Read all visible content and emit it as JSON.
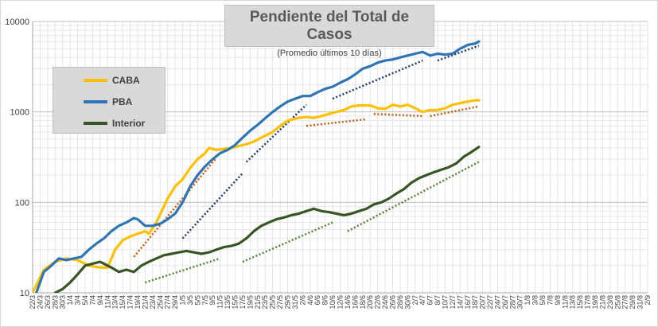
{
  "title": "Pendiente del Total de Casos",
  "subtitle": "(Promedio últimos 10 días)",
  "legend": [
    {
      "key": "caba",
      "label": "CABA",
      "color": "#ffc000"
    },
    {
      "key": "pba",
      "label": "PBA",
      "color": "#2e75b6"
    },
    {
      "key": "interior",
      "label": "Interior",
      "color": "#375623"
    }
  ],
  "chart_data": {
    "type": "line",
    "y_scale": "log",
    "ylim": [
      10,
      10000
    ],
    "y_ticks": [
      "10",
      "100",
      "1000",
      "10000"
    ],
    "grid": true,
    "legend_position": "left",
    "x_dates": [
      "22/3",
      "24/3",
      "26/3",
      "28/3",
      "30/3",
      "1/4",
      "3/4",
      "5/4",
      "7/4",
      "9/4",
      "11/4",
      "13/4",
      "15/4",
      "17/4",
      "19/4",
      "21/4",
      "23/4",
      "25/4",
      "27/4",
      "29/4",
      "1/5",
      "3/5",
      "5/5",
      "7/5",
      "9/5",
      "11/5",
      "13/5",
      "15/5",
      "17/5",
      "19/5",
      "21/5",
      "23/5",
      "25/5",
      "27/5",
      "29/5",
      "31/5",
      "2/6",
      "4/6",
      "6/6",
      "8/6",
      "10/6",
      "12/6",
      "14/6",
      "16/6",
      "18/6",
      "20/6",
      "22/6",
      "24/6",
      "26/6",
      "28/6",
      "30/6",
      "2/7",
      "4/7",
      "6/7",
      "8/7",
      "10/7",
      "12/7",
      "14/7",
      "16/7",
      "18/7",
      "20/7",
      "22/7",
      "24/7",
      "26/7",
      "28/7",
      "30/7",
      "1/8",
      "3/8",
      "5/8",
      "7/8",
      "9/8",
      "11/8",
      "13/8",
      "15/8",
      "17/8",
      "19/8",
      "21/8",
      "23/8",
      "25/8",
      "27/8",
      "29/8",
      "31/8",
      "2/9"
    ],
    "series": [
      {
        "key": "caba",
        "name": "CABA",
        "color": "#ffc000",
        "points": [
          [
            0,
            10
          ],
          [
            3,
            18
          ],
          [
            6,
            22
          ],
          [
            9,
            24
          ],
          [
            12,
            23
          ],
          [
            15,
            20
          ],
          [
            18,
            19
          ],
          [
            20,
            19
          ],
          [
            22,
            30
          ],
          [
            24,
            38
          ],
          [
            26,
            42
          ],
          [
            28,
            45
          ],
          [
            30,
            48
          ],
          [
            31,
            45
          ],
          [
            33,
            60
          ],
          [
            36,
            110
          ],
          [
            38,
            150
          ],
          [
            40,
            180
          ],
          [
            42,
            240
          ],
          [
            44,
            300
          ],
          [
            46,
            350
          ],
          [
            47,
            400
          ],
          [
            49,
            380
          ],
          [
            51,
            390
          ],
          [
            53,
            400
          ],
          [
            55,
            420
          ],
          [
            57,
            440
          ],
          [
            59,
            470
          ],
          [
            61,
            520
          ],
          [
            64,
            600
          ],
          [
            66,
            700
          ],
          [
            68,
            800
          ],
          [
            71,
            860
          ],
          [
            73,
            880
          ],
          [
            75,
            860
          ],
          [
            77,
            900
          ],
          [
            79,
            950
          ],
          [
            81,
            1000
          ],
          [
            83,
            1050
          ],
          [
            85,
            1150
          ],
          [
            87,
            1180
          ],
          [
            90,
            1180
          ],
          [
            92,
            1100
          ],
          [
            94,
            1080
          ],
          [
            96,
            1200
          ],
          [
            98,
            1150
          ],
          [
            100,
            1200
          ],
          [
            102,
            1100
          ],
          [
            104,
            1000
          ],
          [
            106,
            1050
          ],
          [
            108,
            1050
          ],
          [
            110,
            1100
          ],
          [
            112,
            1200
          ],
          [
            114,
            1250
          ],
          [
            116,
            1300
          ],
          [
            118,
            1350
          ],
          [
            119,
            1340
          ]
        ]
      },
      {
        "key": "pba",
        "name": "PBA",
        "color": "#2e75b6",
        "points": [
          [
            1,
            10
          ],
          [
            3,
            17
          ],
          [
            5,
            20
          ],
          [
            7,
            24
          ],
          [
            9,
            23
          ],
          [
            11,
            24
          ],
          [
            13,
            25
          ],
          [
            15,
            30
          ],
          [
            17,
            35
          ],
          [
            19,
            40
          ],
          [
            21,
            48
          ],
          [
            23,
            55
          ],
          [
            25,
            60
          ],
          [
            27,
            67
          ],
          [
            28,
            65
          ],
          [
            30,
            55
          ],
          [
            32,
            55
          ],
          [
            34,
            58
          ],
          [
            36,
            65
          ],
          [
            38,
            75
          ],
          [
            40,
            100
          ],
          [
            42,
            150
          ],
          [
            44,
            200
          ],
          [
            46,
            250
          ],
          [
            48,
            300
          ],
          [
            50,
            350
          ],
          [
            52,
            380
          ],
          [
            54,
            430
          ],
          [
            56,
            520
          ],
          [
            58,
            620
          ],
          [
            60,
            720
          ],
          [
            62,
            850
          ],
          [
            64,
            1000
          ],
          [
            66,
            1150
          ],
          [
            68,
            1300
          ],
          [
            70,
            1400
          ],
          [
            72,
            1500
          ],
          [
            74,
            1500
          ],
          [
            76,
            1650
          ],
          [
            78,
            1800
          ],
          [
            80,
            1900
          ],
          [
            82,
            2100
          ],
          [
            84,
            2300
          ],
          [
            86,
            2600
          ],
          [
            88,
            3000
          ],
          [
            90,
            3200
          ],
          [
            92,
            3500
          ],
          [
            94,
            3700
          ],
          [
            96,
            3800
          ],
          [
            98,
            4000
          ],
          [
            100,
            4200
          ],
          [
            102,
            4400
          ],
          [
            104,
            4600
          ],
          [
            106,
            4200
          ],
          [
            108,
            4400
          ],
          [
            110,
            4300
          ],
          [
            112,
            4400
          ],
          [
            114,
            5000
          ],
          [
            116,
            5500
          ],
          [
            118,
            5700
          ],
          [
            119,
            6000
          ]
        ]
      },
      {
        "key": "interior",
        "name": "Interior",
        "color": "#375623",
        "points": [
          [
            6,
            10
          ],
          [
            8,
            11
          ],
          [
            10,
            13
          ],
          [
            12,
            16
          ],
          [
            14,
            20
          ],
          [
            16,
            21
          ],
          [
            18,
            22
          ],
          [
            19,
            21
          ],
          [
            21,
            19
          ],
          [
            23,
            17
          ],
          [
            25,
            18
          ],
          [
            27,
            17
          ],
          [
            29,
            20
          ],
          [
            31,
            22
          ],
          [
            33,
            24
          ],
          [
            35,
            26
          ],
          [
            37,
            27
          ],
          [
            39,
            28
          ],
          [
            41,
            29
          ],
          [
            43,
            28
          ],
          [
            45,
            27
          ],
          [
            47,
            28
          ],
          [
            49,
            30
          ],
          [
            51,
            32
          ],
          [
            53,
            33
          ],
          [
            55,
            35
          ],
          [
            57,
            40
          ],
          [
            59,
            48
          ],
          [
            61,
            55
          ],
          [
            63,
            60
          ],
          [
            65,
            65
          ],
          [
            67,
            68
          ],
          [
            69,
            72
          ],
          [
            71,
            75
          ],
          [
            73,
            80
          ],
          [
            75,
            85
          ],
          [
            77,
            80
          ],
          [
            79,
            78
          ],
          [
            81,
            75
          ],
          [
            83,
            72
          ],
          [
            85,
            75
          ],
          [
            87,
            80
          ],
          [
            89,
            85
          ],
          [
            91,
            95
          ],
          [
            93,
            100
          ],
          [
            95,
            110
          ],
          [
            97,
            125
          ],
          [
            99,
            140
          ],
          [
            101,
            165
          ],
          [
            103,
            185
          ],
          [
            105,
            200
          ],
          [
            107,
            215
          ],
          [
            109,
            230
          ],
          [
            111,
            245
          ],
          [
            113,
            270
          ],
          [
            115,
            320
          ],
          [
            117,
            360
          ],
          [
            119,
            410
          ]
        ]
      }
    ],
    "trendlines": [
      {
        "series": "caba",
        "color": "#c55a11",
        "from": [
          27,
          25
        ],
        "to": [
          49,
          310
        ]
      },
      {
        "series": "caba",
        "color": "#c55a11",
        "from": [
          73,
          700
        ],
        "to": [
          89,
          830
        ]
      },
      {
        "series": "caba",
        "color": "#c55a11",
        "from": [
          91,
          950
        ],
        "to": [
          104,
          900
        ]
      },
      {
        "series": "caba",
        "color": "#c55a11",
        "from": [
          106,
          900
        ],
        "to": [
          119,
          1150
        ]
      },
      {
        "series": "pba",
        "color": "#203864",
        "from": [
          40,
          40
        ],
        "to": [
          56,
          210
        ]
      },
      {
        "series": "pba",
        "color": "#203864",
        "from": [
          57,
          280
        ],
        "to": [
          73,
          1200
        ]
      },
      {
        "series": "pba",
        "color": "#203864",
        "from": [
          80,
          1400
        ],
        "to": [
          104,
          3700
        ]
      },
      {
        "series": "pba",
        "color": "#203864",
        "from": [
          108,
          3700
        ],
        "to": [
          119,
          5400
        ]
      },
      {
        "series": "interior",
        "color": "#548235",
        "from": [
          30,
          13
        ],
        "to": [
          50,
          24
        ]
      },
      {
        "series": "interior",
        "color": "#548235",
        "from": [
          56,
          22
        ],
        "to": [
          80,
          60
        ]
      },
      {
        "series": "interior",
        "color": "#548235",
        "from": [
          84,
          48
        ],
        "to": [
          119,
          280
        ]
      }
    ]
  }
}
